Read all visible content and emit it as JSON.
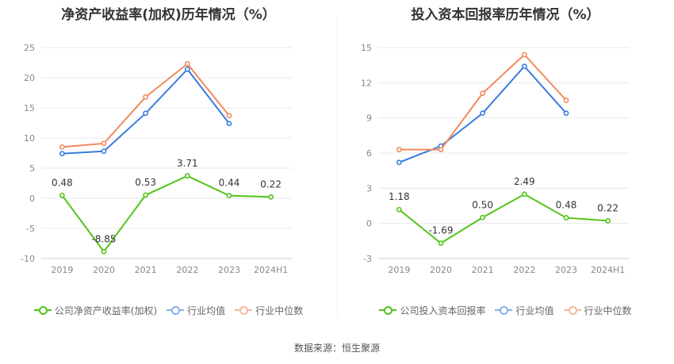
{
  "chart_data": [
    {
      "type": "line",
      "title": "净资产收益率(加权)历年情况（%）",
      "categories": [
        "2019",
        "2020",
        "2021",
        "2022",
        "2023",
        "2024H1"
      ],
      "ylim": [
        -10,
        25
      ],
      "yticks": [
        -10,
        -5,
        0,
        5,
        10,
        15,
        20,
        25
      ],
      "grid": true,
      "legend_position": "bottom",
      "series": [
        {
          "name": "公司净资产收益率(加权)",
          "color": "#52c41a",
          "values": [
            0.48,
            -8.85,
            0.53,
            3.71,
            0.44,
            0.22
          ],
          "labels": [
            "0.48",
            "-8.85",
            "0.53",
            "3.71",
            "0.44",
            "0.22"
          ]
        },
        {
          "name": "行业均值",
          "color": "#3a7be0",
          "values": [
            7.4,
            7.8,
            14.1,
            21.4,
            12.4,
            null
          ]
        },
        {
          "name": "行业中位数",
          "color": "#f08a5d",
          "values": [
            8.5,
            9.1,
            16.8,
            22.3,
            13.7,
            null
          ]
        }
      ]
    },
    {
      "type": "line",
      "title": "投入资本回报率历年情况（%）",
      "categories": [
        "2019",
        "2020",
        "2021",
        "2022",
        "2023",
        "2024H1"
      ],
      "ylim": [
        -3,
        15
      ],
      "yticks": [
        -3,
        0,
        3,
        6,
        9,
        12,
        15
      ],
      "grid": true,
      "legend_position": "bottom",
      "series": [
        {
          "name": "公司投入资本回报率",
          "color": "#52c41a",
          "values": [
            1.18,
            -1.69,
            0.5,
            2.49,
            0.48,
            0.22
          ],
          "labels": [
            "1.18",
            "-1.69",
            "0.50",
            "2.49",
            "0.48",
            "0.22"
          ]
        },
        {
          "name": "行业均值",
          "color": "#3a7be0",
          "values": [
            5.2,
            6.6,
            9.4,
            13.4,
            9.4,
            null
          ]
        },
        {
          "name": "行业中位数",
          "color": "#f08a5d",
          "values": [
            6.3,
            6.3,
            11.1,
            14.4,
            10.5,
            null
          ]
        }
      ]
    }
  ],
  "source": "数据来源：恒生聚源"
}
